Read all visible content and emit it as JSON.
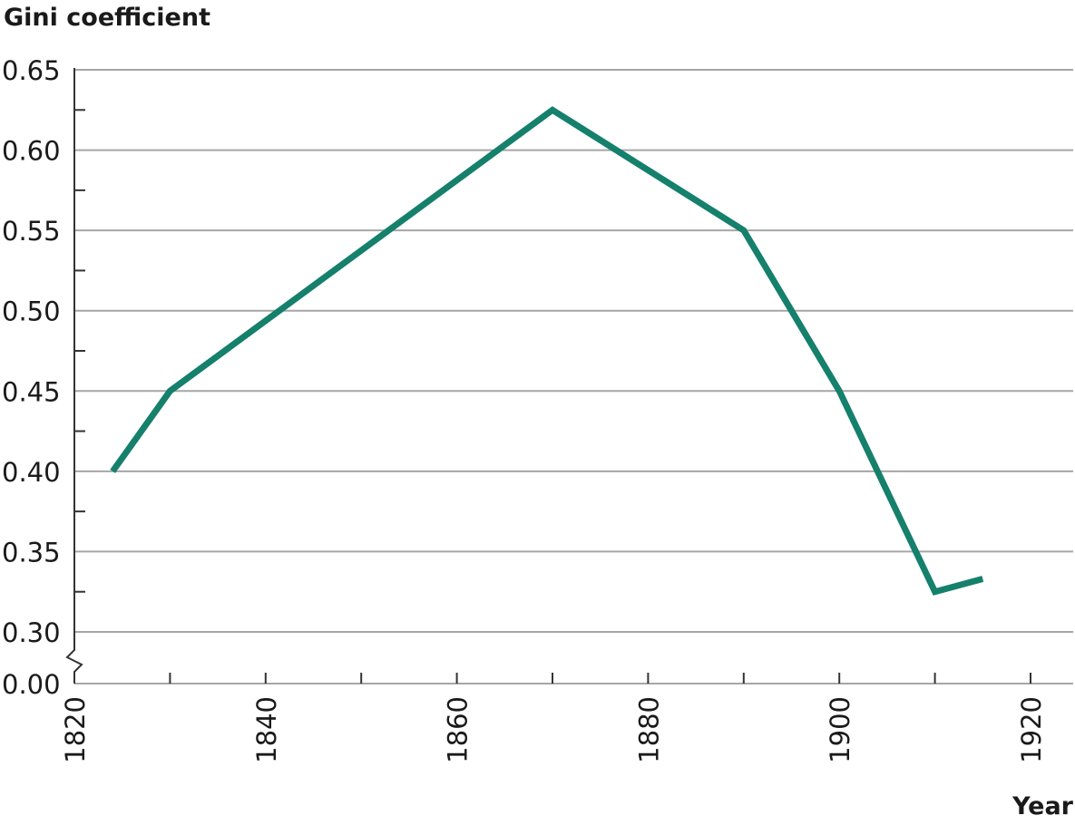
{
  "chart_data": {
    "type": "line",
    "ylabel": "Gini coefficient",
    "xlabel": "Year",
    "x_ticks": [
      1820,
      1840,
      1860,
      1880,
      1900,
      1920
    ],
    "x_minor_ticks": [
      1830,
      1850,
      1870,
      1890,
      1910
    ],
    "xlim": [
      1820,
      1928
    ],
    "y_ticks": [
      "0.65",
      "0.60",
      "0.55",
      "0.50",
      "0.45",
      "0.40",
      "0.35",
      "0.30",
      "0.00"
    ],
    "y_grid": [
      0.3,
      0.35,
      0.4,
      0.45,
      0.5,
      0.55,
      0.6,
      0.65
    ],
    "ylim": [
      0.3,
      0.65
    ],
    "y_axis_break": true,
    "grid": true,
    "series": [
      {
        "color": "#15806b",
        "x": [
          1824,
          1830,
          1870,
          1890,
          1900,
          1910,
          1915
        ],
        "y": [
          0.4,
          0.45,
          0.625,
          0.55,
          0.45,
          0.325,
          0.333
        ]
      }
    ]
  }
}
